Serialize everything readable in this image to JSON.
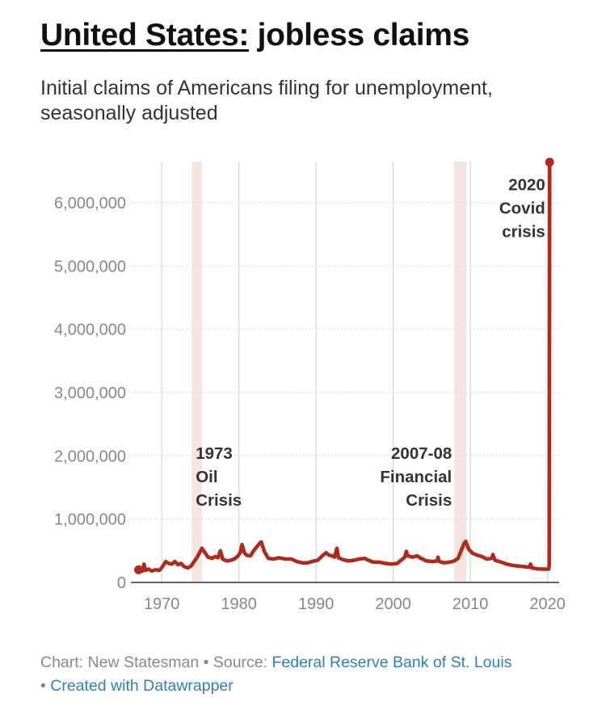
{
  "header": {
    "title_country": "United States:",
    "title_rest": "jobless claims",
    "subtitle": "Initial claims of Americans filing for unemployment, seasonally adjusted"
  },
  "footer": {
    "chart_credit": "Chart: New Statesman",
    "separator": "•",
    "source_label": "Source:",
    "source_link": "Federal Reserve Bank of St. Louis",
    "created_with": "Created with Datawrapper"
  },
  "colors": {
    "line": "#b02a1b",
    "band": "#f6e4e1",
    "grid": "#dddddd",
    "axis_text": "#888888",
    "annotation": "#333333"
  },
  "chart_data": {
    "type": "line",
    "title": "United States: jobless claims",
    "subtitle": "Initial claims of Americans filing for unemployment, seasonally adjusted",
    "xlim": [
      1966,
      2021.5
    ],
    "ylim": [
      0,
      6650000
    ],
    "x_ticks": [
      1970,
      1980,
      1990,
      2000,
      2010,
      2020
    ],
    "y_ticks": [
      {
        "value": 0,
        "label": "0"
      },
      {
        "value": 1000000,
        "label": "1,000,000"
      },
      {
        "value": 2000000,
        "label": "2,000,000"
      },
      {
        "value": 3000000,
        "label": "3,000,000"
      },
      {
        "value": 4000000,
        "label": "4,000,000"
      },
      {
        "value": 5000000,
        "label": "5,000,000"
      },
      {
        "value": 6000000,
        "label": "6,000,000"
      }
    ],
    "grid": true,
    "shaded_periods": [
      {
        "start": 1973.9,
        "end": 1975.2
      },
      {
        "start": 2007.9,
        "end": 2009.5
      }
    ],
    "annotations": [
      {
        "lines": [
          "1973",
          "Oil",
          "Crisis"
        ],
        "x": 1974.4,
        "y": 1950000,
        "anchor": "start"
      },
      {
        "lines": [
          "2007-08",
          "Financial",
          "Crisis"
        ],
        "x": 2007.6,
        "y": 1950000,
        "anchor": "end"
      },
      {
        "lines": [
          "2020",
          "Covid",
          "crisis"
        ],
        "x": 2019.7,
        "y": 6200000,
        "anchor": "end"
      }
    ],
    "series": [
      {
        "values": [
          [
            1967.0,
            200000
          ],
          [
            1967.3,
            230000
          ],
          [
            1967.5,
            180000
          ],
          [
            1967.7,
            290000
          ],
          [
            1967.9,
            190000
          ],
          [
            1968.3,
            210000
          ],
          [
            1968.7,
            180000
          ],
          [
            1969.2,
            200000
          ],
          [
            1969.7,
            190000
          ],
          [
            1970.1,
            250000
          ],
          [
            1970.5,
            330000
          ],
          [
            1970.9,
            300000
          ],
          [
            1971.3,
            290000
          ],
          [
            1971.7,
            330000
          ],
          [
            1972.1,
            280000
          ],
          [
            1972.5,
            300000
          ],
          [
            1972.9,
            250000
          ],
          [
            1973.4,
            230000
          ],
          [
            1973.8,
            260000
          ],
          [
            1974.2,
            330000
          ],
          [
            1974.6,
            400000
          ],
          [
            1974.9,
            470000
          ],
          [
            1975.2,
            540000
          ],
          [
            1975.6,
            470000
          ],
          [
            1976.0,
            400000
          ],
          [
            1976.5,
            380000
          ],
          [
            1976.9,
            410000
          ],
          [
            1977.3,
            390000
          ],
          [
            1977.6,
            500000
          ],
          [
            1977.9,
            370000
          ],
          [
            1978.4,
            340000
          ],
          [
            1978.9,
            350000
          ],
          [
            1979.4,
            370000
          ],
          [
            1979.9,
            420000
          ],
          [
            1980.2,
            480000
          ],
          [
            1980.4,
            600000
          ],
          [
            1980.7,
            470000
          ],
          [
            1981.0,
            430000
          ],
          [
            1981.5,
            420000
          ],
          [
            1981.9,
            500000
          ],
          [
            1982.3,
            560000
          ],
          [
            1982.7,
            620000
          ],
          [
            1982.9,
            640000
          ],
          [
            1983.3,
            490000
          ],
          [
            1983.8,
            380000
          ],
          [
            1984.5,
            370000
          ],
          [
            1985.2,
            390000
          ],
          [
            1986.0,
            370000
          ],
          [
            1986.8,
            370000
          ],
          [
            1987.5,
            330000
          ],
          [
            1988.2,
            310000
          ],
          [
            1988.9,
            310000
          ],
          [
            1989.5,
            330000
          ],
          [
            1990.2,
            350000
          ],
          [
            1990.8,
            420000
          ],
          [
            1991.3,
            470000
          ],
          [
            1991.7,
            430000
          ],
          [
            1992.1,
            420000
          ],
          [
            1992.4,
            400000
          ],
          [
            1992.7,
            540000
          ],
          [
            1992.9,
            390000
          ],
          [
            1993.5,
            360000
          ],
          [
            1994.2,
            340000
          ],
          [
            1994.9,
            350000
          ],
          [
            1995.6,
            370000
          ],
          [
            1996.3,
            380000
          ],
          [
            1996.8,
            350000
          ],
          [
            1997.4,
            320000
          ],
          [
            1998.2,
            320000
          ],
          [
            1999.0,
            300000
          ],
          [
            1999.8,
            290000
          ],
          [
            2000.5,
            300000
          ],
          [
            2001.0,
            350000
          ],
          [
            2001.5,
            400000
          ],
          [
            2001.7,
            490000
          ],
          [
            2001.9,
            420000
          ],
          [
            2002.5,
            400000
          ],
          [
            2003.1,
            420000
          ],
          [
            2003.6,
            380000
          ],
          [
            2004.3,
            340000
          ],
          [
            2005.1,
            330000
          ],
          [
            2005.7,
            340000
          ],
          [
            2005.8,
            400000
          ],
          [
            2005.95,
            330000
          ],
          [
            2006.6,
            310000
          ],
          [
            2007.3,
            320000
          ],
          [
            2007.9,
            340000
          ],
          [
            2008.4,
            380000
          ],
          [
            2008.8,
            500000
          ],
          [
            2009.2,
            620000
          ],
          [
            2009.4,
            650000
          ],
          [
            2009.8,
            520000
          ],
          [
            2010.3,
            460000
          ],
          [
            2010.9,
            430000
          ],
          [
            2011.5,
            410000
          ],
          [
            2012.1,
            370000
          ],
          [
            2012.8,
            380000
          ],
          [
            2012.9,
            440000
          ],
          [
            2013.2,
            350000
          ],
          [
            2014.0,
            320000
          ],
          [
            2014.7,
            290000
          ],
          [
            2015.4,
            270000
          ],
          [
            2016.1,
            260000
          ],
          [
            2016.9,
            250000
          ],
          [
            2017.6,
            240000
          ],
          [
            2017.8,
            290000
          ],
          [
            2017.95,
            230000
          ],
          [
            2018.7,
            215000
          ],
          [
            2019.4,
            210000
          ],
          [
            2020.0,
            210000
          ],
          [
            2020.15,
            211000
          ],
          [
            2020.22,
            280000
          ],
          [
            2020.24,
            3300000
          ],
          [
            2020.27,
            6640000
          ]
        ]
      }
    ]
  }
}
